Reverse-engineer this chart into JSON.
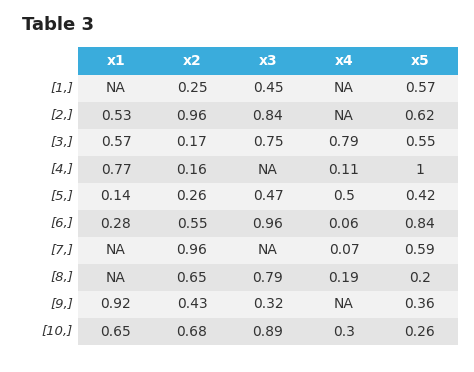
{
  "title": "Table 3",
  "columns": [
    "x1",
    "x2",
    "x3",
    "x4",
    "x5"
  ],
  "row_labels": [
    "[1,]",
    "[2,]",
    "[3,]",
    "[4,]",
    "[5,]",
    "[6,]",
    "[7,]",
    "[8,]",
    "[9,]",
    "[10,]"
  ],
  "rows": [
    [
      "NA",
      "0.25",
      "0.45",
      "NA",
      "0.57"
    ],
    [
      "0.53",
      "0.96",
      "0.84",
      "NA",
      "0.62"
    ],
    [
      "0.57",
      "0.17",
      "0.75",
      "0.79",
      "0.55"
    ],
    [
      "0.77",
      "0.16",
      "NA",
      "0.11",
      "1"
    ],
    [
      "0.14",
      "0.26",
      "0.47",
      "0.5",
      "0.42"
    ],
    [
      "0.28",
      "0.55",
      "0.96",
      "0.06",
      "0.84"
    ],
    [
      "NA",
      "0.96",
      "NA",
      "0.07",
      "0.59"
    ],
    [
      "NA",
      "0.65",
      "0.79",
      "0.19",
      "0.2"
    ],
    [
      "0.92",
      "0.43",
      "0.32",
      "NA",
      "0.36"
    ],
    [
      "0.65",
      "0.68",
      "0.89",
      "0.3",
      "0.26"
    ]
  ],
  "header_bg_color": "#3AACDC",
  "header_text_color": "#FFFFFF",
  "row_label_color": "#333333",
  "data_text_color": "#333333",
  "even_row_bg": "#E4E4E4",
  "odd_row_bg": "#F2F2F2",
  "title_color": "#222222",
  "title_fontsize": 13,
  "header_fontsize": 10,
  "data_fontsize": 10,
  "row_label_fontsize": 9.5
}
